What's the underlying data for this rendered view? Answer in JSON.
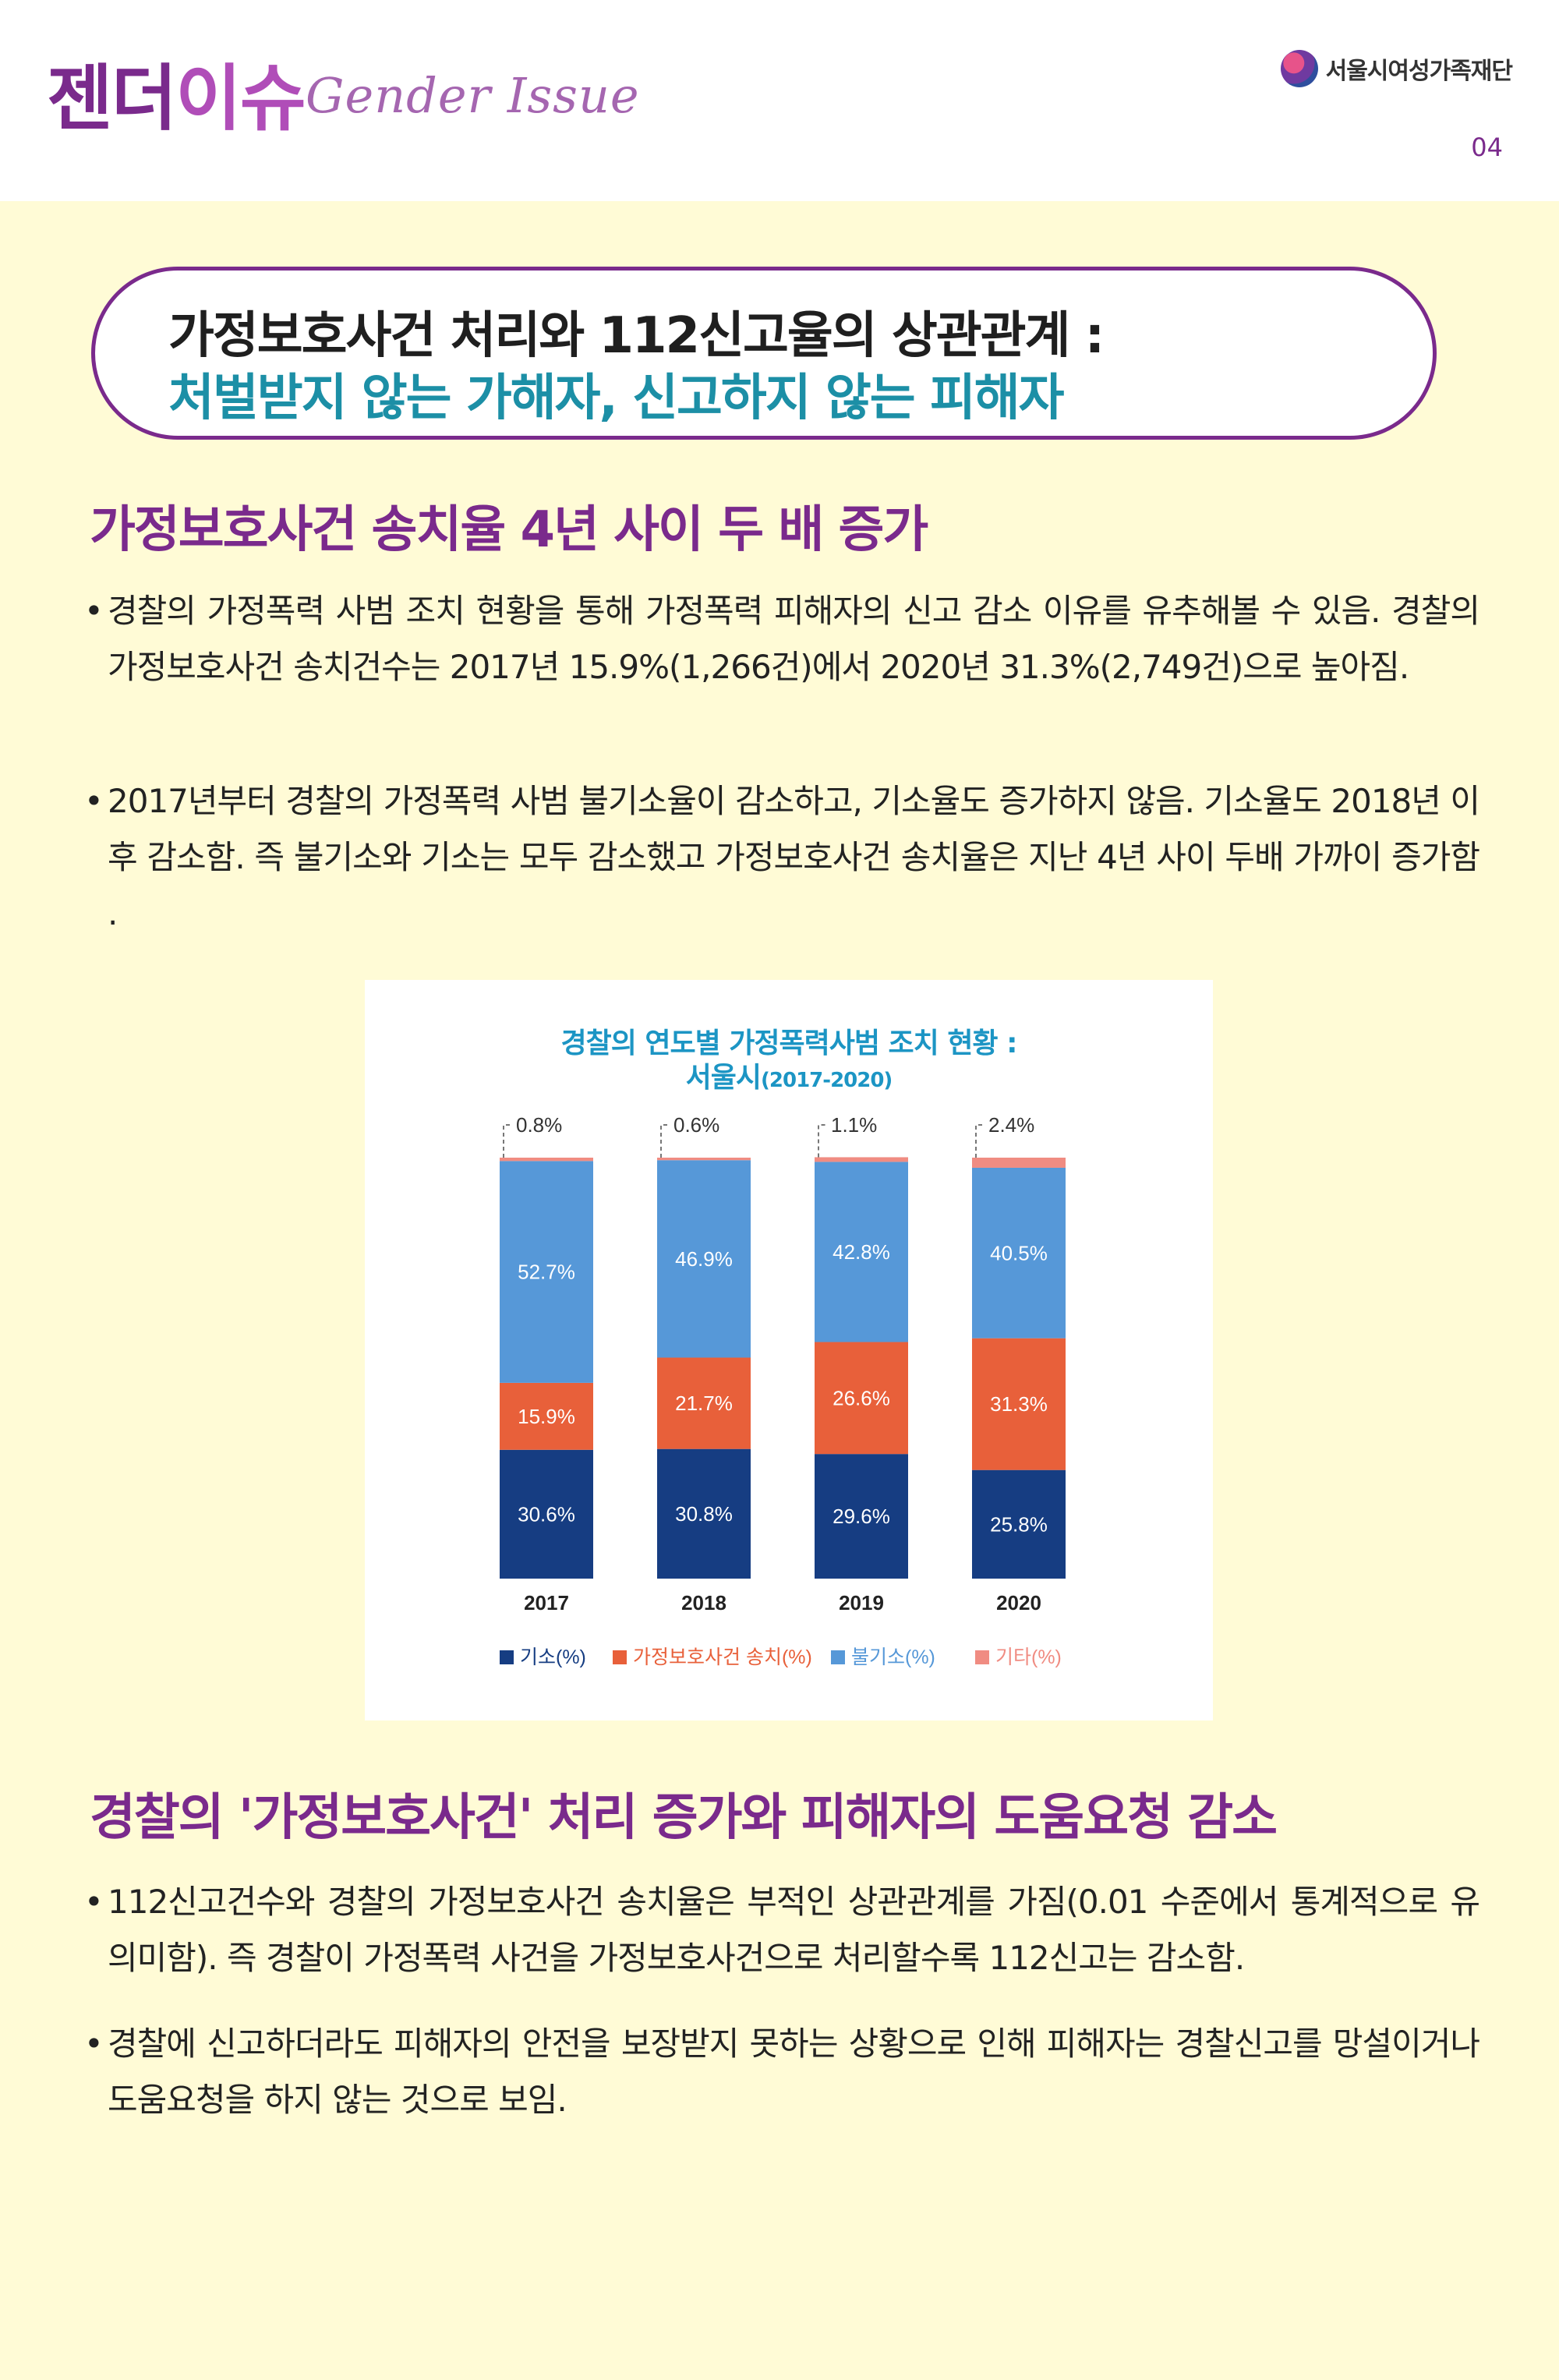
{
  "header": {
    "brand_ko_1": "젠더",
    "brand_ko_2": "이슈",
    "brand_en": "Gender Issue",
    "org_name": "서울시여성가족재단",
    "page_number": "04"
  },
  "title": {
    "line1": "가정보호사건 처리와 112신고율의 상관관계 :",
    "line2": "처벌받지 않는 가해자, 신고하지 않는 피해자"
  },
  "section1": {
    "heading": "가정보호사건 송치율 4년 사이 두 배 증가",
    "bullets": [
      "경찰의 가정폭력 사범 조치 현황을 통해 가정폭력 피해자의 신고 감소 이유를 유추해볼 수 있음. 경찰의 가정보호사건 송치건수는 2017년 15.9%(1,266건)에서 2020년 31.3%(2,749건)으로 높아짐.",
      "2017년부터 경찰의 가정폭력 사범 불기소율이 감소하고, 기소율도 증가하지 않음. 기소율도 2018년 이후 감소함. 즉 불기소와 기소는 모두 감소했고 가정보호사건 송치율은 지난 4년 사이 두배 가까이 증가함 ."
    ]
  },
  "section2": {
    "heading": "경찰의 '가정보호사건' 처리 증가와 피해자의 도움요청 감소",
    "bullets": [
      "112신고건수와 경찰의 가정보호사건 송치율은 부적인 상관관계를 가짐(0.01 수준에서 통계적으로 유의미함). 즉 경찰이 가정폭력 사건을 가정보호사건으로 처리할수록 112신고는 감소함.",
      "경찰에 신고하더라도 피해자의 안전을 보장받지 못하는 상황으로 인해 피해자는 경찰신고를 망설이거나 도움요청을 하지 않는 것으로 보임."
    ]
  },
  "chart_data": {
    "type": "bar",
    "stacked": true,
    "title": "경찰의 연도별 가정폭력사범 조치 현황 :",
    "subtitle_main": "서울시",
    "subtitle_small": "(2017-2020)",
    "categories": [
      "2017",
      "2018",
      "2019",
      "2020"
    ],
    "series": [
      {
        "name": "기소(%)",
        "color": "#163D82",
        "values": [
          30.6,
          30.8,
          29.6,
          25.8
        ]
      },
      {
        "name": "가정보호사건 송치(%)",
        "color": "#E8603A",
        "values": [
          15.9,
          21.7,
          26.6,
          31.3
        ]
      },
      {
        "name": "불기소(%)",
        "color": "#5698D8",
        "values": [
          52.7,
          46.9,
          42.8,
          40.5
        ]
      },
      {
        "name": "기타(%)",
        "color": "#F08C82",
        "values": [
          0.8,
          0.6,
          1.1,
          2.4
        ]
      }
    ],
    "ylim": [
      0,
      100
    ],
    "legend_position": "bottom",
    "grid": false
  }
}
